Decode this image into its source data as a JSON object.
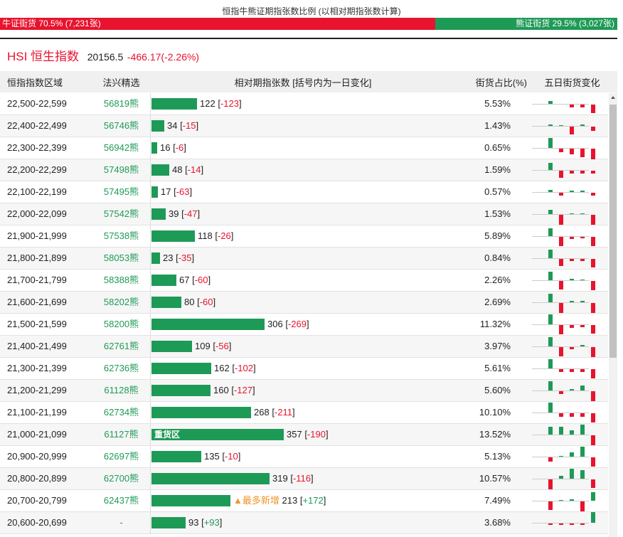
{
  "ratio": {
    "title": "恒指牛熊证期指张数比例 (以相对期指张数计算)",
    "bull_label": "牛证街货 70.5% (7,231张)",
    "bear_label": "熊证街货 29.5% (3,027张)",
    "bull_share": 0.705,
    "bull_color": "#e8132e",
    "bear_color": "#1e9a57"
  },
  "index": {
    "name": "HSI 恒生指数",
    "value": "20156.5",
    "change": "-466.17(-2.26%)"
  },
  "header": {
    "range": "恒指指数区域",
    "pick": "法兴精选",
    "relative": "相对期指张数 [括号内为一日变化]",
    "pct": "街货占比(%)",
    "five_day": "五日街货变化"
  },
  "rows": [
    {
      "range": "22,500-22,599",
      "pick": "56819熊",
      "count": "122",
      "change": "-123",
      "pct": "5.53%",
      "bar_value": 122,
      "spark": [
        4,
        0,
        -4,
        -4,
        -12
      ]
    },
    {
      "range": "22,400-22,499",
      "pick": "56746熊",
      "count": "34",
      "change": "-15",
      "pct": "1.43%",
      "bar_value": 34,
      "spark": [
        2,
        1,
        -11,
        2,
        -6
      ]
    },
    {
      "range": "22,300-22,399",
      "pick": "56942熊",
      "count": "16",
      "change": "-6",
      "pct": "0.65%",
      "bar_value": 16,
      "spark": [
        14,
        -5,
        -8,
        -12,
        -15
      ]
    },
    {
      "range": "22,200-22,299",
      "pick": "57498熊",
      "count": "48",
      "change": "-14",
      "pct": "1.59%",
      "bar_value": 48,
      "spark": [
        10,
        -10,
        -4,
        -4,
        -4
      ]
    },
    {
      "range": "22,100-22,199",
      "pick": "57495熊",
      "count": "17",
      "change": "-63",
      "pct": "0.57%",
      "bar_value": 17,
      "spark": [
        3,
        -4,
        2,
        2,
        -4
      ]
    },
    {
      "range": "22,000-22,099",
      "pick": "57542熊",
      "count": "39",
      "change": "-47",
      "pct": "1.53%",
      "bar_value": 39,
      "spark": [
        6,
        -14,
        1,
        1,
        -14
      ]
    },
    {
      "range": "21,900-21,999",
      "pick": "57538熊",
      "count": "118",
      "change": "-26",
      "pct": "5.89%",
      "bar_value": 118,
      "spark": [
        11,
        -13,
        -3,
        -2,
        -13
      ]
    },
    {
      "range": "21,800-21,899",
      "pick": "58053熊",
      "count": "23",
      "change": "-35",
      "pct": "0.84%",
      "bar_value": 23,
      "spark": [
        12,
        -10,
        -3,
        -3,
        -12
      ]
    },
    {
      "range": "21,700-21,799",
      "pick": "58388熊",
      "count": "67",
      "change": "-60",
      "pct": "2.26%",
      "bar_value": 67,
      "spark": [
        12,
        -12,
        2,
        1,
        -13
      ]
    },
    {
      "range": "21,600-21,699",
      "pick": "58202熊",
      "count": "80",
      "change": "-60",
      "pct": "2.69%",
      "bar_value": 80,
      "spark": [
        12,
        -14,
        2,
        2,
        -14
      ]
    },
    {
      "range": "21,500-21,599",
      "pick": "58200熊",
      "count": "306",
      "change": "-269",
      "pct": "11.32%",
      "bar_value": 306,
      "spark": [
        14,
        -13,
        -4,
        -3,
        -12
      ]
    },
    {
      "range": "21,400-21,499",
      "pick": "62761熊",
      "count": "109",
      "change": "-56",
      "pct": "3.97%",
      "bar_value": 109,
      "spark": [
        13,
        -13,
        -3,
        2,
        -14
      ]
    },
    {
      "range": "21,300-21,399",
      "pick": "62736熊",
      "count": "162",
      "change": "-102",
      "pct": "5.61%",
      "bar_value": 162,
      "spark": [
        13,
        -4,
        -4,
        -4,
        -13
      ]
    },
    {
      "range": "21,200-21,299",
      "pick": "61128熊",
      "count": "160",
      "change": "-127",
      "pct": "5.60%",
      "bar_value": 160,
      "spark": [
        13,
        -4,
        2,
        7,
        -14
      ]
    },
    {
      "range": "21,100-21,199",
      "pick": "62734熊",
      "count": "268",
      "change": "-211",
      "pct": "10.10%",
      "bar_value": 268,
      "spark": [
        14,
        -5,
        -5,
        -5,
        -13
      ]
    },
    {
      "range": "21,000-21,099",
      "pick": "61127熊",
      "count": "357",
      "change": "-190",
      "pct": "13.52%",
      "bar_value": 357,
      "bar_label": "重货区",
      "spark": [
        11,
        11,
        6,
        14,
        -14
      ]
    },
    {
      "range": "20,900-20,999",
      "pick": "62697熊",
      "count": "135",
      "change": "-10",
      "pct": "5.13%",
      "bar_value": 135,
      "spark": [
        -6,
        1,
        6,
        14,
        -13
      ]
    },
    {
      "range": "20,800-20,899",
      "pick": "62700熊",
      "count": "319",
      "change": "-116",
      "pct": "10.57%",
      "bar_value": 319,
      "spark": [
        -14,
        4,
        14,
        12,
        -12
      ]
    },
    {
      "range": "20,700-20,799",
      "pick": "62437熊",
      "count": "213",
      "change": "+172",
      "pct": "7.49%",
      "bar_value": 213,
      "tag": "▲最多新增",
      "spark": [
        -12,
        1,
        2,
        -14,
        12
      ]
    },
    {
      "range": "20,600-20,699",
      "pick": "-",
      "count": "93",
      "change": "+93",
      "pct": "3.68%",
      "bar_value": 93,
      "spark": [
        -2,
        -2,
        -2,
        -2,
        15
      ]
    }
  ]
}
